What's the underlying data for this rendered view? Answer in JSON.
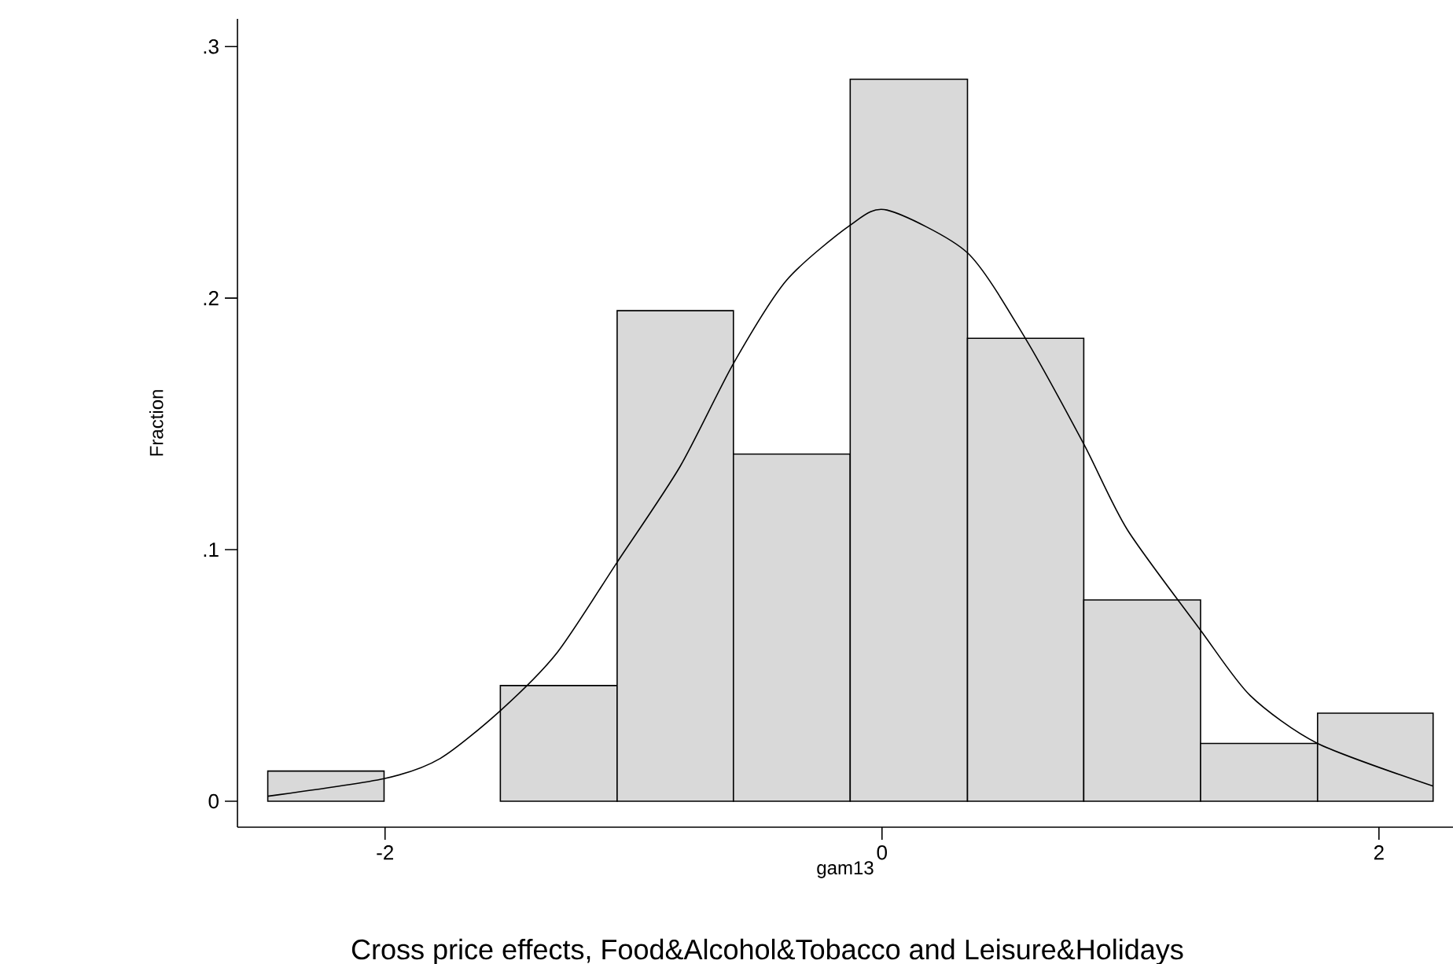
{
  "chart_data": {
    "type": "histogram",
    "title": "Cross price effects, Food&Alcohol&Tobacco and Leisure&Holidays",
    "xlabel": "gam13",
    "ylabel": "Fraction",
    "bins": [
      -2.472,
      -2.004,
      -1.536,
      -1.066,
      -0.598,
      -0.128,
      0.344,
      0.812,
      1.282,
      1.753,
      2.218
    ],
    "values": [
      0.012,
      0,
      0.046,
      0.195,
      0.138,
      0.287,
      0.184,
      0.08,
      0.023,
      0.035
    ],
    "color": "#d9d9d9",
    "series": [
      {
        "type": "line",
        "color": "#000000",
        "x": [
          -2.472,
          -2.004,
          -1.778,
          -1.536,
          -1.308,
          -1.066,
          -0.813,
          -0.598,
          -0.385,
          -0.128,
          0.02,
          0.344,
          0.577,
          0.812,
          0.987,
          1.282,
          1.482,
          1.753,
          2.218
        ],
        "values": [
          0.002,
          0.009,
          0.017,
          0.036,
          0.059,
          0.095,
          0.133,
          0.174,
          0.207,
          0.229,
          0.235,
          0.218,
          0.184,
          0.142,
          0.108,
          0.068,
          0.042,
          0.023,
          0.006
        ]
      }
    ],
    "xlim": [
      -2.594,
      2.298
    ],
    "ylim": [
      -0.0103,
      0.311
    ],
    "xticks": [
      -2,
      0,
      2
    ],
    "yticks": [
      0,
      {
        "value": 0.1,
        "label": ".1"
      },
      {
        "value": 0.2,
        "label": ".2"
      },
      {
        "value": 0.3,
        "label": ".3"
      }
    ]
  }
}
